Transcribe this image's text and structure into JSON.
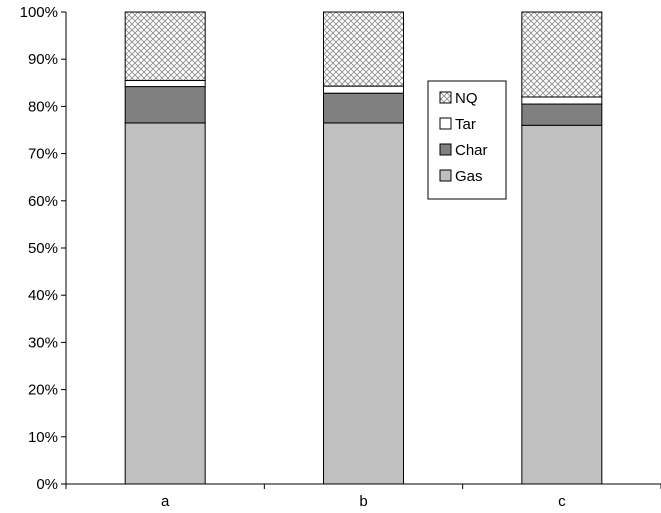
{
  "chart_data": {
    "type": "bar",
    "stacked": true,
    "percent_stacked": true,
    "title": "",
    "xlabel": "",
    "ylabel": "",
    "categories": [
      "a",
      "b",
      "c"
    ],
    "ylim": [
      0,
      100
    ],
    "y_ticks": [
      0,
      10,
      20,
      30,
      40,
      50,
      60,
      70,
      80,
      90,
      100
    ],
    "y_tick_labels": [
      "0%",
      "10%",
      "20%",
      "30%",
      "40%",
      "50%",
      "60%",
      "70%",
      "80%",
      "90%",
      "100%"
    ],
    "grid": false,
    "legend_position": "inside-right",
    "series": [
      {
        "name": "Gas",
        "values": [
          76.5,
          76.5,
          76.0
        ],
        "color": "#c0c0c0",
        "pattern": "solid"
      },
      {
        "name": "Char",
        "values": [
          7.7,
          6.3,
          4.5
        ],
        "color": "#808080",
        "pattern": "solid"
      },
      {
        "name": "Tar",
        "values": [
          1.3,
          1.5,
          1.5
        ],
        "color": "#ffffff",
        "pattern": "solid"
      },
      {
        "name": "NQ",
        "values": [
          14.5,
          15.7,
          18.0
        ],
        "color": "#ffffff",
        "pattern": "crosshatch"
      }
    ],
    "legend_order": [
      "NQ",
      "Tar",
      "Char",
      "Gas"
    ]
  }
}
